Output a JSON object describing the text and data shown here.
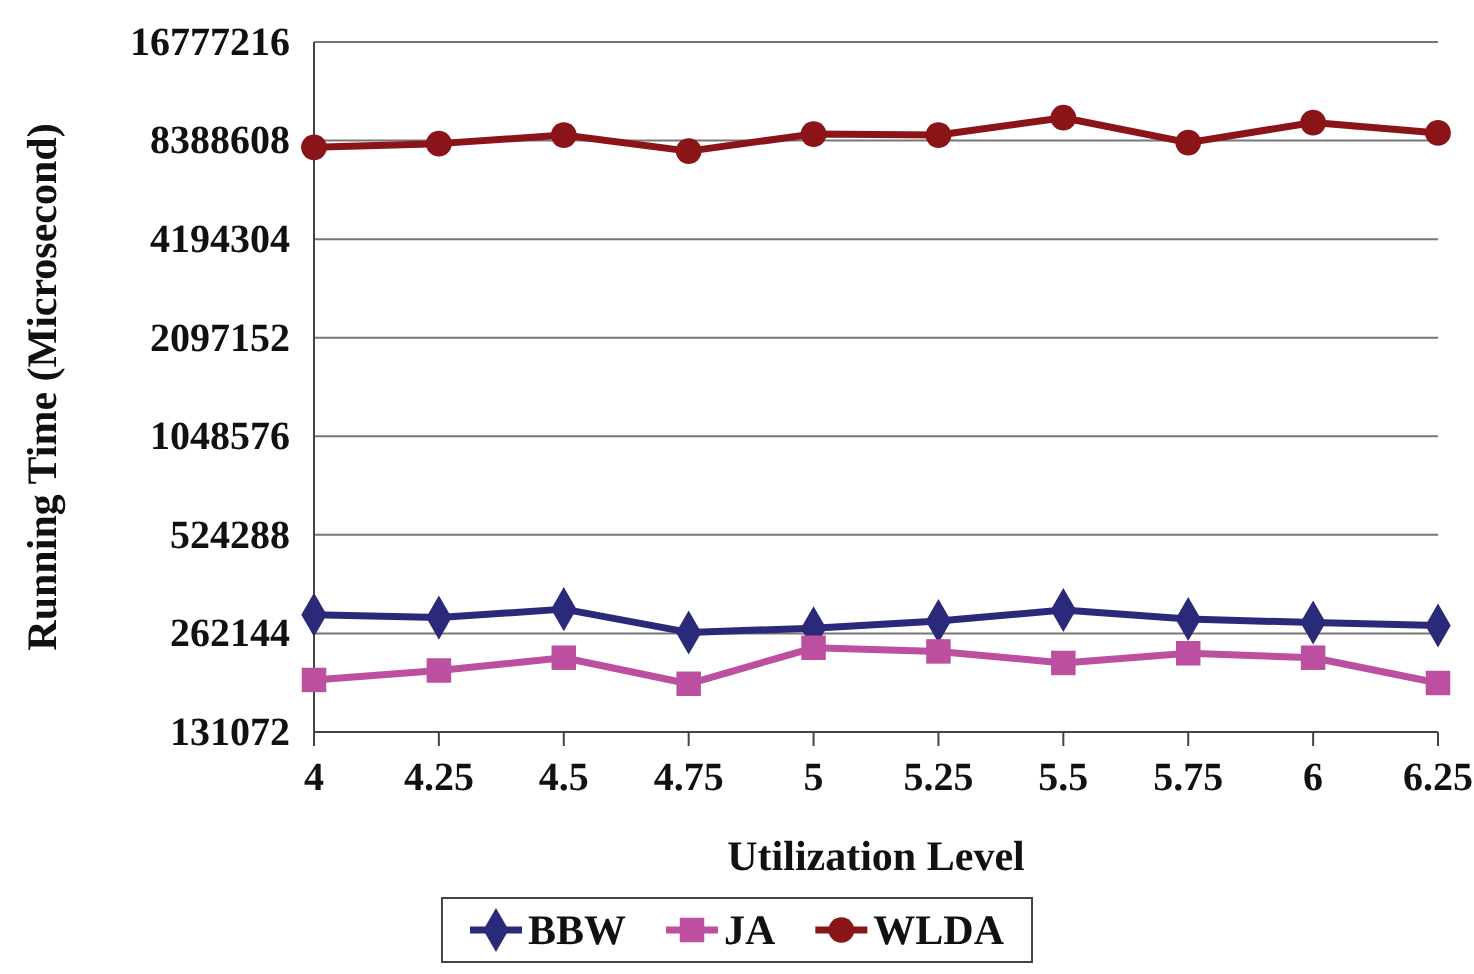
{
  "chart_data": {
    "type": "line",
    "xlabel": "Utilization Level",
    "ylabel": "Running Time (Microsecond)",
    "x": [
      4,
      4.25,
      4.5,
      4.75,
      5,
      5.25,
      5.5,
      5.75,
      6,
      6.25
    ],
    "xlim": [
      4,
      6.25
    ],
    "xticks": [
      4,
      4.25,
      4.5,
      4.75,
      5,
      5.25,
      5.5,
      5.75,
      6,
      6.25
    ],
    "log": "y",
    "ylim": [
      131072,
      16777216
    ],
    "yticks": [
      131072,
      262144,
      524288,
      1048576,
      2097152,
      4194304,
      8388608,
      16777216
    ],
    "grid": "y",
    "legend": "bottom",
    "series": [
      {
        "name": "BBW",
        "color": "#2b2a7a",
        "marker": "diamond",
        "values": [
          299000,
          293000,
          311000,
          264000,
          272000,
          286000,
          309000,
          290000,
          283000,
          277000
        ]
      },
      {
        "name": "JA",
        "color": "#bd4fa0",
        "marker": "square",
        "values": [
          189000,
          202000,
          221000,
          184000,
          237000,
          231000,
          213000,
          228000,
          221000,
          185000
        ]
      },
      {
        "name": "WLDA",
        "color": "#8b1418",
        "marker": "circle",
        "values": [
          8000000,
          8210000,
          8720000,
          7790000,
          8780000,
          8720000,
          9850000,
          8270000,
          9520000,
          8850000
        ]
      }
    ]
  }
}
